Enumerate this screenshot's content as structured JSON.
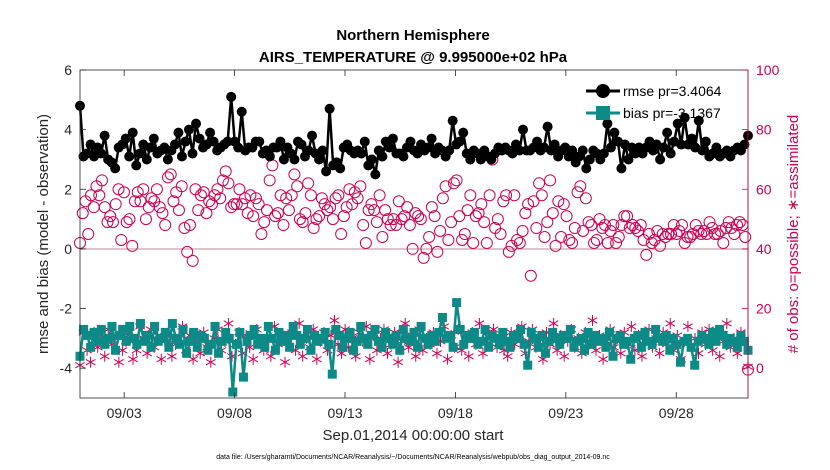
{
  "chart_data": {
    "type": "line",
    "title_line1": "Northern Hemisphere",
    "title_line2": "AIRS_TEMPERATURE @ 9.995000e+02 hPa",
    "xlabel": "Sep.01,2014 00:00:00 start",
    "ylabel_left": "rmse and bias (model - observation)",
    "ylabel_right": "# of obs: o=possible; ∗=assimilated",
    "footnote": "data file: /Users/gharamti/Documents/NCAR/Reanalysis/~/Documents/NCAR/Reanalysis/webpub/obs_diag_output_2014-09.nc",
    "xlim_days": [
      1.0,
      31.25
    ],
    "ylim_left": [
      -5,
      6
    ],
    "ylim_right": [
      -10,
      100
    ],
    "x_ticks": [
      {
        "day": 3,
        "label": "09/03"
      },
      {
        "day": 8,
        "label": "09/08"
      },
      {
        "day": 13,
        "label": "09/13"
      },
      {
        "day": 18,
        "label": "09/18"
      },
      {
        "day": 23,
        "label": "09/23"
      },
      {
        "day": 28,
        "label": "09/28"
      }
    ],
    "y_ticks_left": [
      "6",
      "4",
      "2",
      "0",
      "-2",
      "-4"
    ],
    "y_ticks_right": [
      "100",
      "80",
      "60",
      "40",
      "20",
      "0"
    ],
    "series": [
      {
        "name": "rmse",
        "legend": "rmse pr=3.4064",
        "color": "#000000",
        "values": [
          4.8,
          3.1,
          3.2,
          3.5,
          3.1,
          3.4,
          3.2,
          3.8,
          3.0,
          2.9,
          2.7,
          3.4,
          3.5,
          3.7,
          3.1,
          3.9,
          2.8,
          3.2,
          3.5,
          3.0,
          3.4,
          3.7,
          3.2,
          3.3,
          3.4,
          3.0,
          3.3,
          3.5,
          3.9,
          3.1,
          3.6,
          4.0,
          3.2,
          4.2,
          3.7,
          3.4,
          3.5,
          3.9,
          3.6,
          3.3,
          3.4,
          3.5,
          3.6,
          5.1,
          3.6,
          3.4,
          4.6,
          3.3,
          3.4,
          3.4,
          3.6,
          3.6,
          3.2,
          3.3,
          3.1,
          3.4,
          3.4,
          3.6,
          3.0,
          3.4,
          3.2,
          3.0,
          3.6,
          3.5,
          3.1,
          3.3,
          3.8,
          3.2,
          3.0,
          3.3,
          2.6,
          4.7,
          2.8,
          2.9,
          2.7,
          3.4,
          3.5,
          3.3,
          3.2,
          3.3,
          3.2,
          3.6,
          2.8,
          3.0,
          2.5,
          3.3,
          3.1,
          3.6,
          3.4,
          3.7,
          3.2,
          3.2,
          3.1,
          3.4,
          3.6,
          3.3,
          3.2,
          3.5,
          3.3,
          3.4,
          3.7,
          3.2,
          3.4,
          3.3,
          3.1,
          3.3,
          4.3,
          3.5,
          3.6,
          3.9,
          3.2,
          3.0,
          3.3,
          3.2,
          3.0,
          3.3,
          3.1,
          3.0,
          3.2,
          3.4,
          3.3,
          3.4,
          3.3,
          3.2,
          3.5,
          3.3,
          4.0,
          3.3,
          3.3,
          3.4,
          3.6,
          3.3,
          3.4,
          4.1,
          3.3,
          3.5,
          3.1,
          3.3,
          3.4,
          3.1,
          3.3,
          2.9,
          3.1,
          3.3,
          2.7,
          3.0,
          3.3,
          3.2,
          3.0,
          3.2,
          4.2,
          3.4,
          3.9,
          3.6,
          2.7,
          3.5,
          3.0,
          3.4,
          3.2,
          3.4,
          3.2,
          3.4,
          3.6,
          3.3,
          3.5,
          3.0,
          3.4,
          3.9,
          3.2,
          3.6,
          4.2,
          3.5,
          4.4,
          3.5,
          3.7,
          3.4,
          4.3,
          3.3,
          3.6,
          3.1,
          3.2,
          3.4,
          3.1,
          3.2,
          3.3,
          3.1,
          3.3,
          3.4,
          3.3,
          3.5,
          3.8
        ]
      },
      {
        "name": "bias",
        "legend": "bias pr=-3.1367",
        "color": "#0b8a87",
        "values": [
          -3.6,
          -2.7,
          -2.9,
          -3.3,
          -2.8,
          -3.1,
          -2.7,
          -3.2,
          -3.0,
          -2.6,
          -3.4,
          -2.9,
          -2.7,
          -3.1,
          -2.6,
          -3.0,
          -3.2,
          -2.5,
          -3.1,
          -2.9,
          -3.3,
          -2.6,
          -3.1,
          -3.0,
          -2.8,
          -3.3,
          -2.5,
          -3.0,
          -3.2,
          -2.7,
          -3.5,
          -3.1,
          -2.8,
          -3.3,
          -2.9,
          -3.0,
          -3.4,
          -3.2,
          -2.6,
          -3.5,
          -3.1,
          -2.8,
          -3.0,
          -4.8,
          -3.2,
          -2.8,
          -4.3,
          -3.1,
          -2.9,
          -2.7,
          -3.2,
          -3.0,
          -3.3,
          -2.6,
          -3.0,
          -3.4,
          -2.8,
          -3.1,
          -2.9,
          -3.3,
          -2.6,
          -2.9,
          -3.2,
          -3.0,
          -2.7,
          -3.4,
          -2.9,
          -3.1,
          -3.0,
          -2.8,
          -3.2,
          -4.2,
          -2.7,
          -2.9,
          -3.3,
          -3.0,
          -2.8,
          -3.4,
          -3.1,
          -2.6,
          -3.0,
          -3.2,
          -2.9,
          -2.7,
          -3.1,
          -3.3,
          -2.8,
          -3.0,
          -3.2,
          -2.9,
          -3.4,
          -2.7,
          -3.0,
          -3.1,
          -2.8,
          -3.3,
          -2.6,
          -3.0,
          -3.2,
          -2.9,
          -3.1,
          -2.8,
          -2.3,
          -3.0,
          -2.9,
          -3.3,
          -1.8,
          -2.7,
          -3.2,
          -2.9,
          -3.0,
          -2.8,
          -3.2,
          -3.1,
          -2.7,
          -3.3,
          -2.9,
          -3.0,
          -3.2,
          -2.8,
          -3.1,
          -3.3,
          -2.9,
          -3.0,
          -2.7,
          -3.2,
          -3.9,
          -2.8,
          -3.0,
          -3.3,
          -2.9,
          -3.5,
          -3.1,
          -2.8,
          -3.0,
          -3.2,
          -2.9,
          -3.0,
          -2.7,
          -3.3,
          -3.1,
          -3.0,
          -3.4,
          -2.8,
          -3.2,
          -2.9,
          -3.1,
          -3.0,
          -3.3,
          -2.8,
          -3.6,
          -3.0,
          -2.9,
          -3.2,
          -3.1,
          -3.7,
          -3.0,
          -2.9,
          -3.3,
          -2.8,
          -3.1,
          -3.2,
          -2.7,
          -3.0,
          -3.1,
          -2.9,
          -3.4,
          -3.0,
          -3.2,
          -3.8,
          -3.1,
          -3.0,
          -3.3,
          -3.9,
          -3.1,
          -2.9,
          -3.0,
          -3.2,
          -2.8,
          -3.1,
          -2.7,
          -2.9,
          -3.2,
          -3.0,
          -3.1,
          -3.3,
          -2.9,
          -3.1,
          -3.4
        ]
      },
      {
        "name": "possible",
        "color": "#cc0052",
        "values": [
          42,
          52,
          56,
          45,
          58,
          54,
          61,
          58,
          63,
          54,
          49,
          51,
          49,
          55,
          60,
          43,
          59,
          49,
          50,
          41,
          56,
          59,
          56,
          60,
          50,
          54,
          57,
          56,
          60,
          54,
          52,
          48,
          64,
          65,
          56,
          59,
          53,
          61,
          47,
          39,
          48,
          36,
          60,
          53,
          58,
          59,
          52,
          56,
          55,
          58,
          60,
          57,
          63,
          66,
          62,
          54,
          55,
          55,
          60,
          55,
          57,
          52,
          58,
          51,
          57,
          55,
          45,
          49,
          53,
          63,
          68,
          51,
          52,
          58,
          48,
          57,
          53,
          58,
          65,
          61,
          50,
          49,
          52,
          62,
          58,
          47,
          50,
          51,
          57,
          55,
          53,
          54,
          50,
          57,
          58,
          45,
          51,
          54,
          60,
          55,
          59,
          57,
          61,
          48,
          42,
          53,
          55,
          53,
          49,
          58,
          44,
          53,
          50,
          48,
          50,
          48,
          56,
          50,
          51,
          54,
          48,
          40,
          52,
          51,
          50,
          37,
          40,
          44,
          54,
          51,
          39,
          46,
          57,
          61,
          43,
          49,
          62,
          63,
          51,
          43,
          45,
          53,
          58,
          42,
          51,
          52,
          55,
          49,
          42,
          58,
          70,
          47,
          50,
          45,
          56,
          58,
          39,
          41,
          58,
          43,
          42,
          46,
          52,
          55,
          31,
          56,
          47,
          62,
          58,
          44,
          49,
          63,
          52,
          41,
          56,
          44,
          55,
          51,
          43,
          42,
          47,
          59,
          61,
          46,
          57,
          49,
          48,
          42,
          43,
          50,
          47,
          48,
          42,
          46,
          48,
          42,
          44,
          48,
          51,
          51,
          47,
          48,
          47,
          46,
          48,
          43,
          38,
          45,
          42,
          43,
          46,
          41,
          45,
          44,
          45,
          45,
          48,
          45,
          46,
          48,
          42,
          44,
          44,
          45,
          48,
          46,
          45,
          46,
          45,
          49,
          47,
          45,
          45,
          46,
          42,
          47,
          49,
          47,
          45,
          48,
          49,
          48,
          44,
          -0.5
        ]
      },
      {
        "name": "assimilated",
        "color": "#cc0052",
        "values": [
          1,
          12,
          6,
          2,
          12,
          7,
          10,
          4,
          13,
          8,
          11,
          2,
          6,
          9,
          12,
          3,
          6,
          14,
          10,
          5,
          13,
          7,
          11,
          3,
          9,
          12,
          4,
          8,
          10,
          14,
          6,
          11,
          3,
          9,
          5,
          12,
          7,
          2,
          10,
          13,
          6,
          9,
          15,
          4,
          8,
          12,
          5,
          11,
          7,
          3,
          13,
          9,
          6,
          10,
          4,
          14,
          8,
          11,
          2,
          9,
          12,
          6,
          15,
          4,
          10,
          7,
          13,
          3,
          9,
          12,
          6,
          11,
          16,
          8,
          5,
          13,
          7,
          10,
          4,
          12,
          9,
          14,
          3,
          11,
          6,
          10,
          13,
          5,
          8,
          12,
          2,
          9,
          15,
          7,
          11,
          4,
          13,
          6,
          10,
          8,
          12,
          5,
          9,
          14,
          3,
          11,
          7,
          13,
          6,
          10,
          4,
          12,
          8,
          15,
          5,
          9,
          11,
          13,
          7,
          10,
          6,
          4,
          12,
          8,
          11,
          14,
          5,
          9,
          13,
          7,
          10,
          3,
          12,
          8,
          15,
          6,
          11,
          4,
          9,
          13,
          7,
          10,
          5,
          12,
          8,
          16,
          6,
          11,
          3,
          9,
          13,
          7,
          10,
          5,
          12,
          8,
          14,
          6,
          11,
          4,
          9,
          13,
          7,
          10,
          5,
          12,
          8,
          15,
          6,
          11,
          3,
          9,
          14,
          7,
          10,
          5,
          12,
          8,
          13,
          6,
          11,
          4,
          9,
          15,
          7,
          10,
          5,
          12,
          8,
          0.5
        ]
      }
    ]
  }
}
